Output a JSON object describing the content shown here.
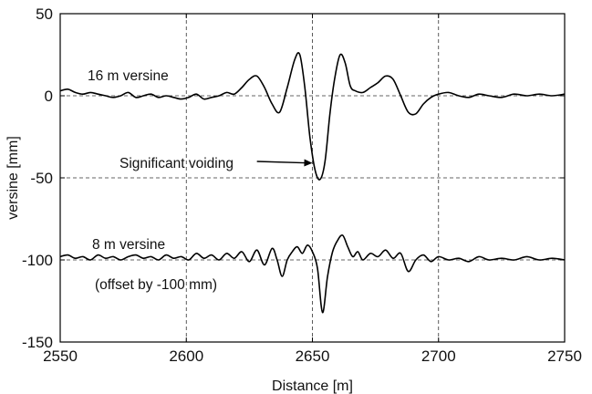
{
  "chart_data": {
    "type": "line",
    "xlabel": "Distance [m]",
    "ylabel": "versine [mm]",
    "xlim": [
      2550,
      2750
    ],
    "ylim": [
      -150,
      50
    ],
    "xticks": [
      "2550",
      "2600",
      "2650",
      "2700",
      "2750"
    ],
    "yticks": [
      "50",
      "0",
      "-50",
      "-100",
      "-150"
    ],
    "grid": true,
    "grid_style": "dashed",
    "annotations": {
      "label_16m": "16 m versine",
      "label_8m": "8 m versine",
      "offset_note": "(offset by -100 mm)",
      "voiding": "Significant voiding"
    },
    "arrow": {
      "from": [
        2628,
        -40
      ],
      "to": [
        2650,
        -41
      ]
    },
    "series": [
      {
        "name": "16 m versine",
        "x": [
          2550,
          2553,
          2556,
          2559,
          2562,
          2565,
          2568,
          2571,
          2574,
          2577,
          2580,
          2583,
          2586,
          2589,
          2592,
          2595,
          2598,
          2601,
          2604,
          2607,
          2610,
          2613,
          2616,
          2619,
          2622,
          2625,
          2628,
          2631,
          2634,
          2637,
          2640,
          2643,
          2645,
          2647,
          2649,
          2651,
          2653,
          2655,
          2657,
          2659,
          2661,
          2663,
          2665,
          2667,
          2670,
          2673,
          2676,
          2679,
          2682,
          2685,
          2688,
          2691,
          2694,
          2697,
          2700,
          2704,
          2708,
          2712,
          2716,
          2720,
          2725,
          2730,
          2735,
          2740,
          2745,
          2750
        ],
        "values": [
          3,
          4,
          2,
          1,
          2,
          1,
          0,
          -1,
          0,
          2,
          -1,
          0,
          1,
          -1,
          0,
          -1,
          -2,
          -1,
          1,
          -2,
          -1,
          0,
          2,
          1,
          5,
          10,
          12,
          5,
          -5,
          -10,
          5,
          22,
          25,
          5,
          -25,
          -45,
          -51,
          -40,
          -10,
          12,
          25,
          20,
          6,
          3,
          2,
          5,
          8,
          12,
          10,
          0,
          -10,
          -11,
          -5,
          -1,
          1,
          2,
          0,
          -1,
          1,
          0,
          -1,
          1,
          0,
          1,
          0,
          1
        ]
      },
      {
        "name": "8 m versine",
        "x": [
          2550,
          2553,
          2556,
          2559,
          2562,
          2565,
          2568,
          2571,
          2574,
          2577,
          2580,
          2583,
          2586,
          2589,
          2592,
          2595,
          2598,
          2601,
          2604,
          2607,
          2610,
          2613,
          2616,
          2619,
          2622,
          2625,
          2628,
          2631,
          2634,
          2636,
          2638,
          2640,
          2642,
          2644,
          2646,
          2648,
          2650,
          2652,
          2654,
          2656,
          2658,
          2660,
          2662,
          2664,
          2666,
          2668,
          2670,
          2673,
          2676,
          2679,
          2682,
          2685,
          2688,
          2691,
          2694,
          2697,
          2700,
          2704,
          2708,
          2712,
          2716,
          2720,
          2725,
          2730,
          2735,
          2740,
          2745,
          2750
        ],
        "values": [
          -98,
          -97,
          -99,
          -98,
          -100,
          -97,
          -99,
          -98,
          -100,
          -98,
          -97,
          -99,
          -98,
          -100,
          -97,
          -99,
          -98,
          -100,
          -96,
          -99,
          -97,
          -100,
          -96,
          -99,
          -95,
          -101,
          -94,
          -103,
          -93,
          -100,
          -110,
          -100,
          -95,
          -92,
          -96,
          -91,
          -95,
          -105,
          -132,
          -110,
          -95,
          -88,
          -85,
          -92,
          -98,
          -95,
          -100,
          -96,
          -98,
          -94,
          -99,
          -96,
          -107,
          -100,
          -97,
          -101,
          -98,
          -100,
          -99,
          -101,
          -98,
          -100,
          -99,
          -100,
          -98,
          -100,
          -99,
          -100
        ]
      }
    ]
  }
}
